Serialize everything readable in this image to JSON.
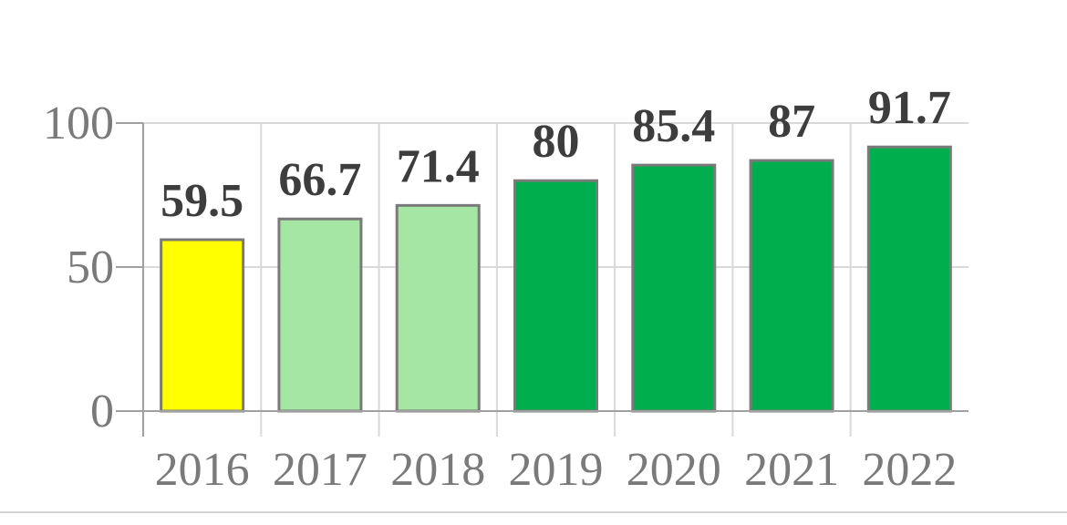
{
  "chart_data": {
    "type": "bar",
    "categories": [
      "2016",
      "2017",
      "2018",
      "2019",
      "2020",
      "2021",
      "2022"
    ],
    "values": [
      59.5,
      66.7,
      71.4,
      80,
      85.4,
      87,
      91.7
    ],
    "value_labels": [
      "59.5",
      "66.7",
      "71.4",
      "80",
      "85.4",
      "87",
      "91.7"
    ],
    "bar_colors": [
      "#ffff00",
      "#a6e6a4",
      "#a6e6a4",
      "#00ae4e",
      "#00ae4e",
      "#00ae4e",
      "#00ae4e"
    ],
    "bar_border_color": "#7a7a7a",
    "title": "",
    "xlabel": "",
    "ylabel": "",
    "ylim": [
      0,
      100
    ],
    "yticks": [
      0,
      50,
      100
    ],
    "ytick_labels": [
      "0",
      "50",
      "100"
    ],
    "grid": true,
    "legend": false
  }
}
